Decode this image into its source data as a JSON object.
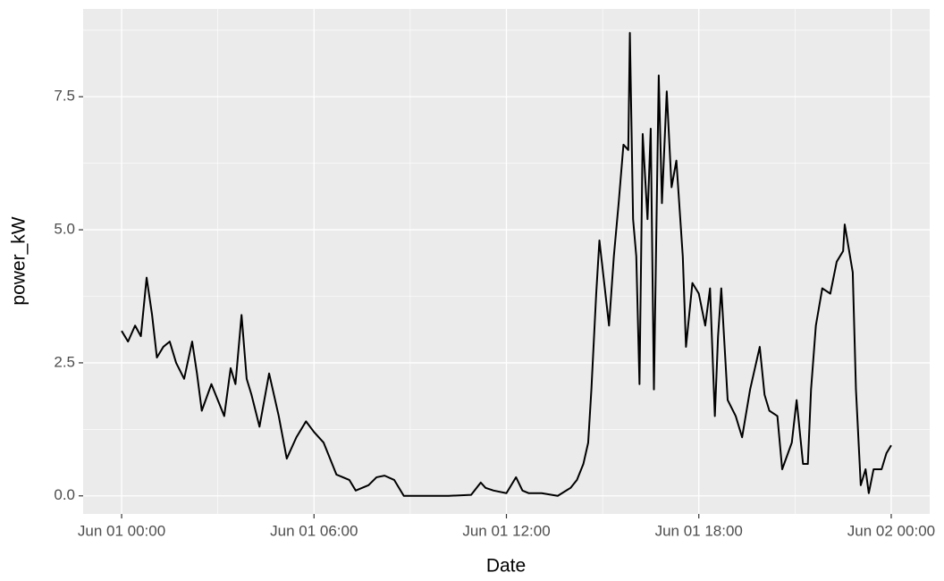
{
  "chart_data": {
    "type": "line",
    "x_label": "Date",
    "y_label": "power_kW",
    "x": [
      0,
      0.2,
      0.42,
      0.6,
      0.78,
      0.95,
      1.1,
      1.3,
      1.5,
      1.7,
      1.95,
      2.2,
      2.35,
      2.5,
      2.8,
      3.0,
      3.2,
      3.4,
      3.55,
      3.74,
      3.9,
      4.05,
      4.3,
      4.6,
      4.9,
      5.15,
      5.45,
      5.75,
      6.0,
      6.3,
      6.7,
      7.1,
      7.3,
      7.5,
      7.7,
      7.95,
      8.2,
      8.5,
      8.8,
      9.5,
      10.2,
      10.9,
      11.2,
      11.35,
      11.6,
      12.0,
      12.3,
      12.5,
      12.7,
      13.1,
      13.6,
      14.0,
      14.2,
      14.4,
      14.55,
      14.65,
      14.8,
      14.9,
      15.05,
      15.2,
      15.35,
      15.5,
      15.65,
      15.8,
      15.85,
      15.95,
      16.05,
      16.15,
      16.25,
      16.4,
      16.5,
      16.6,
      16.75,
      16.85,
      17.0,
      17.15,
      17.3,
      17.5,
      17.6,
      17.8,
      18.0,
      18.2,
      18.35,
      18.5,
      18.6,
      18.7,
      18.9,
      19.15,
      19.35,
      19.6,
      19.9,
      20.05,
      20.2,
      20.45,
      20.6,
      20.9,
      21.05,
      21.25,
      21.4,
      21.5,
      21.65,
      21.85,
      22.1,
      22.3,
      22.5,
      22.55,
      22.8,
      22.9,
      23.05,
      23.2,
      23.3,
      23.45,
      23.7,
      23.85,
      24.0
    ],
    "values": [
      3.1,
      2.9,
      3.2,
      3.0,
      4.1,
      3.4,
      2.6,
      2.8,
      2.9,
      2.5,
      2.2,
      2.9,
      2.3,
      1.6,
      2.1,
      1.8,
      1.5,
      2.4,
      2.1,
      3.4,
      2.2,
      1.9,
      1.3,
      2.3,
      1.5,
      0.7,
      1.1,
      1.4,
      1.2,
      1.0,
      0.4,
      0.3,
      0.1,
      0.15,
      0.2,
      0.35,
      0.38,
      0.3,
      0.0,
      0.0,
      0.0,
      0.02,
      0.25,
      0.15,
      0.1,
      0.05,
      0.35,
      0.1,
      0.05,
      0.05,
      0.0,
      0.15,
      0.3,
      0.6,
      1.0,
      2.0,
      3.8,
      4.8,
      4.0,
      3.2,
      4.5,
      5.5,
      6.6,
      6.5,
      8.7,
      5.2,
      4.5,
      2.1,
      6.8,
      5.2,
      6.9,
      2.0,
      7.9,
      5.5,
      7.6,
      5.8,
      6.3,
      4.5,
      2.8,
      4.0,
      3.8,
      3.2,
      3.9,
      1.5,
      3.0,
      3.9,
      1.8,
      1.5,
      1.1,
      2.0,
      2.8,
      1.9,
      1.6,
      1.5,
      0.5,
      1.0,
      1.8,
      0.6,
      0.6,
      2.0,
      3.2,
      3.9,
      3.8,
      4.4,
      4.6,
      5.1,
      4.2,
      2.0,
      0.2,
      0.5,
      0.05,
      0.5,
      0.5,
      0.8,
      0.95
    ],
    "color": "#000000",
    "xlim": [
      -1.2,
      25.2
    ],
    "xticks": [
      {
        "value": 0,
        "label": "Jun 01 00:00"
      },
      {
        "value": 6,
        "label": "Jun 01 06:00"
      },
      {
        "value": 12,
        "label": "Jun 01 12:00"
      },
      {
        "value": 18,
        "label": "Jun 01 18:00"
      },
      {
        "value": 24,
        "label": "Jun 02 00:00"
      }
    ],
    "ylim": [
      -0.34,
      9.15
    ],
    "yticks": [
      {
        "value": 0,
        "label": "0.0"
      },
      2.5,
      {
        "value": 5,
        "label": "5.0"
      },
      7.5
    ],
    "grid": true
  }
}
